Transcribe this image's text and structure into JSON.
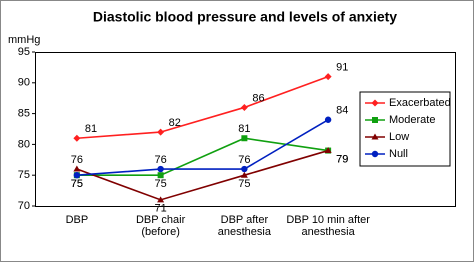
{
  "chart_data": {
    "type": "line",
    "title": "Diastolic blood pressure and levels of anxiety",
    "y_label": "mmHg",
    "categories": [
      "DBP",
      "DBP chair (before)",
      "DBP after anesthesia",
      "DBP 10 min after anesthesia"
    ],
    "series": [
      {
        "name": "Exacerbated",
        "color": "#ff2020",
        "marker": "diamond",
        "values": [
          81,
          82,
          86,
          91
        ]
      },
      {
        "name": "Moderate",
        "color": "#10a010",
        "marker": "square",
        "values": [
          75,
          75,
          81,
          79
        ]
      },
      {
        "name": "Low",
        "color": "#800000",
        "marker": "triangle",
        "values": [
          76,
          71,
          75,
          79
        ]
      },
      {
        "name": "Null",
        "color": "#0020c0",
        "marker": "circle",
        "values": [
          75,
          76,
          76,
          84
        ]
      }
    ],
    "ylim": [
      70,
      95
    ],
    "yticks": [
      70,
      75,
      80,
      85,
      90,
      95
    ],
    "grid": false,
    "legend": "right"
  }
}
